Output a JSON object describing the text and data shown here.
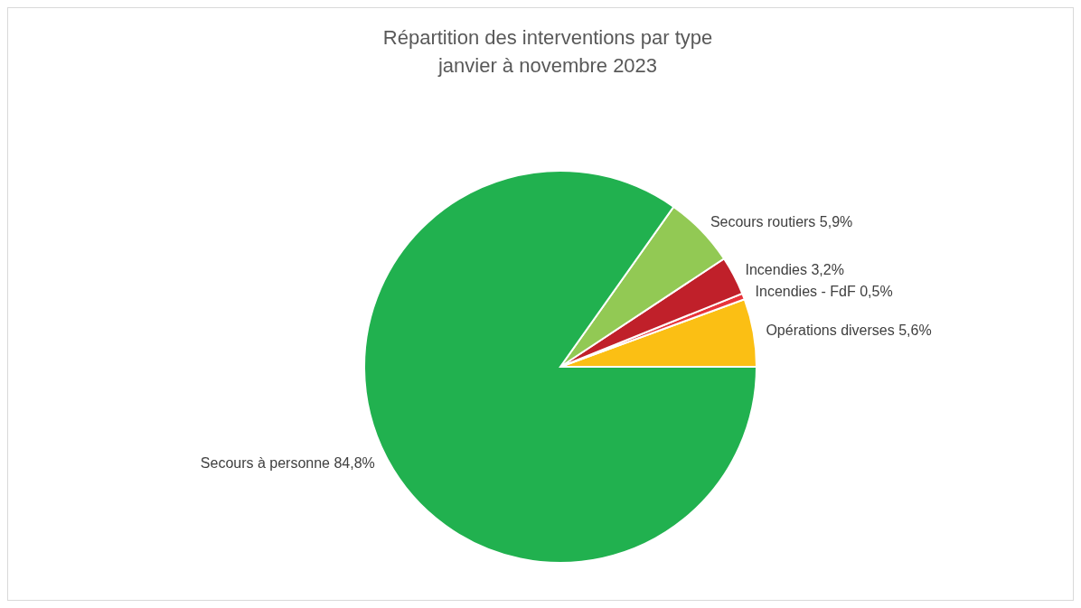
{
  "chart_data": {
    "type": "pie",
    "title": "Répartition des interventions par type\njanvier à novembre 2023",
    "categories": [
      "Opérations diverses",
      "Incendies - FdF",
      "Incendies",
      "Secours routiers",
      "Secours à personne"
    ],
    "values": [
      5.6,
      0.5,
      3.2,
      5.9,
      84.8
    ],
    "value_labels": [
      "5,6%",
      "0,5%",
      "3,2%",
      "5,9%",
      "84,8%"
    ],
    "colors": [
      "#fbbf14",
      "#e8343a",
      "#c0202a",
      "#92c954",
      "#21b14f"
    ],
    "legend": false
  }
}
